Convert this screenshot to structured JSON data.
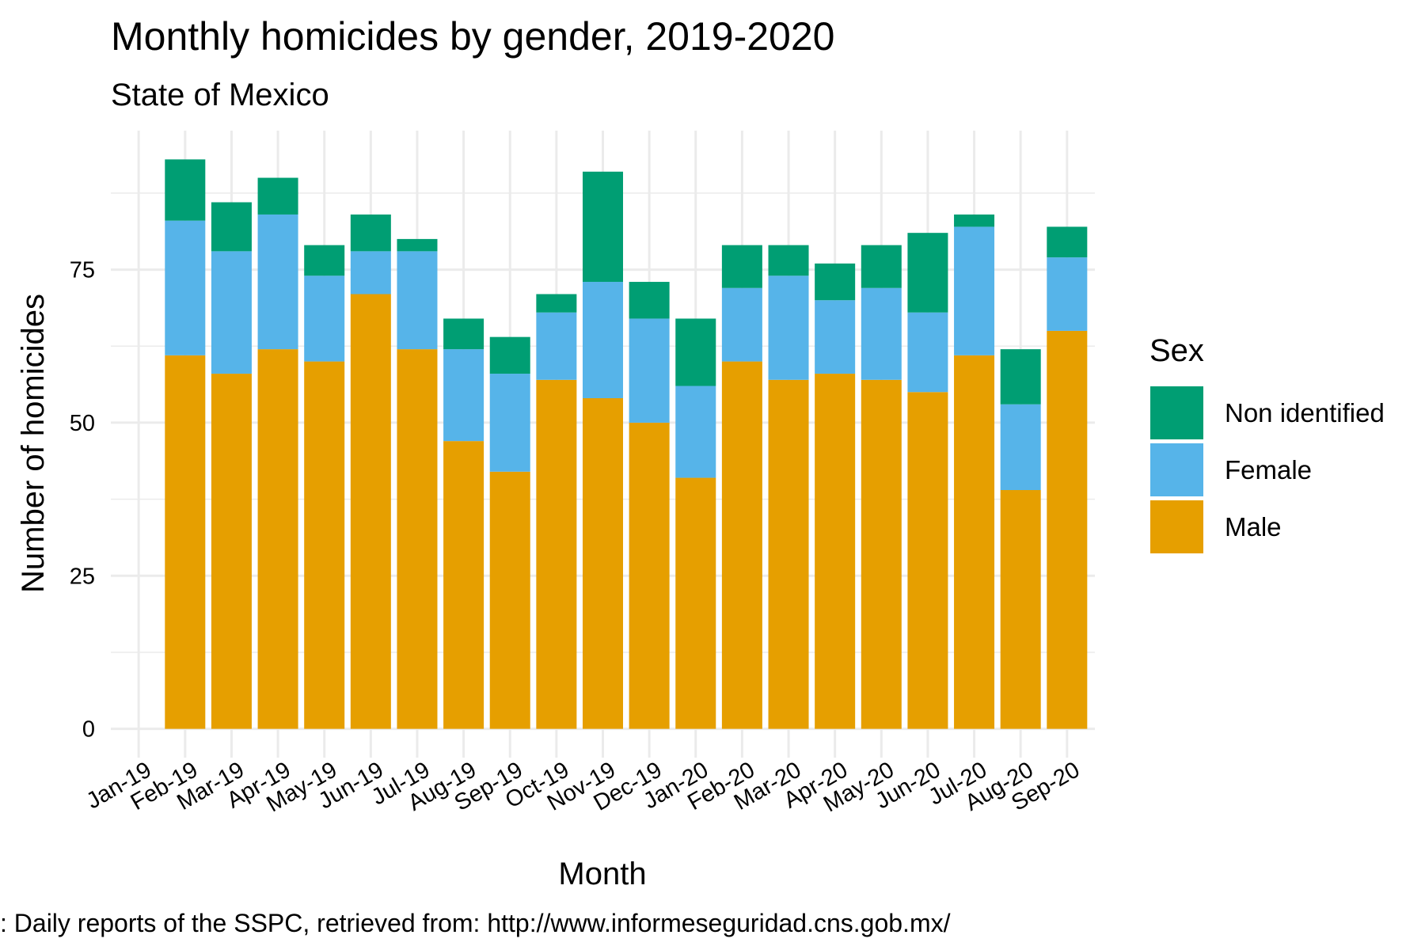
{
  "chart_data": {
    "type": "stacked_bar",
    "title": "Monthly homicides by gender, 2019-2020",
    "subtitle": "State of Mexico",
    "xlabel": "Month",
    "ylabel": "Number of homicides",
    "caption": ": Daily reports of the SSPC, retrieved from: http://www.informeseguridad.cns.gob.mx/",
    "legend_title": "Sex",
    "legend_position": "right",
    "categories": [
      "Jan-19",
      "Feb-19",
      "Mar-19",
      "Apr-19",
      "May-19",
      "Jun-19",
      "Jul-19",
      "Aug-19",
      "Sep-19",
      "Oct-19",
      "Nov-19",
      "Dec-19",
      "Jan-20",
      "Feb-20",
      "Mar-20",
      "Apr-20",
      "May-20",
      "Jun-20",
      "Jul-20",
      "Aug-20",
      "Sep-20"
    ],
    "series": [
      {
        "name": "Male",
        "color": "#E69F00",
        "values": [
          null,
          61,
          58,
          62,
          60,
          71,
          62,
          47,
          42,
          57,
          54,
          50,
          41,
          60,
          57,
          58,
          57,
          55,
          61,
          39,
          65
        ]
      },
      {
        "name": "Female",
        "color": "#56B4E9",
        "values": [
          null,
          22,
          20,
          22,
          14,
          7,
          16,
          15,
          16,
          11,
          19,
          17,
          15,
          12,
          17,
          12,
          15,
          13,
          21,
          14,
          12
        ]
      },
      {
        "name": "Non identified",
        "color": "#009E73",
        "values": [
          null,
          10,
          8,
          6,
          5,
          6,
          2,
          5,
          6,
          3,
          18,
          6,
          11,
          7,
          5,
          6,
          7,
          13,
          2,
          9,
          5
        ]
      }
    ],
    "ylim": [
      -4.7,
      97.7
    ],
    "yticks": [
      0,
      25,
      50,
      75
    ],
    "yminor": [
      12.5,
      37.5,
      62.5,
      87.5
    ],
    "grid": true
  }
}
